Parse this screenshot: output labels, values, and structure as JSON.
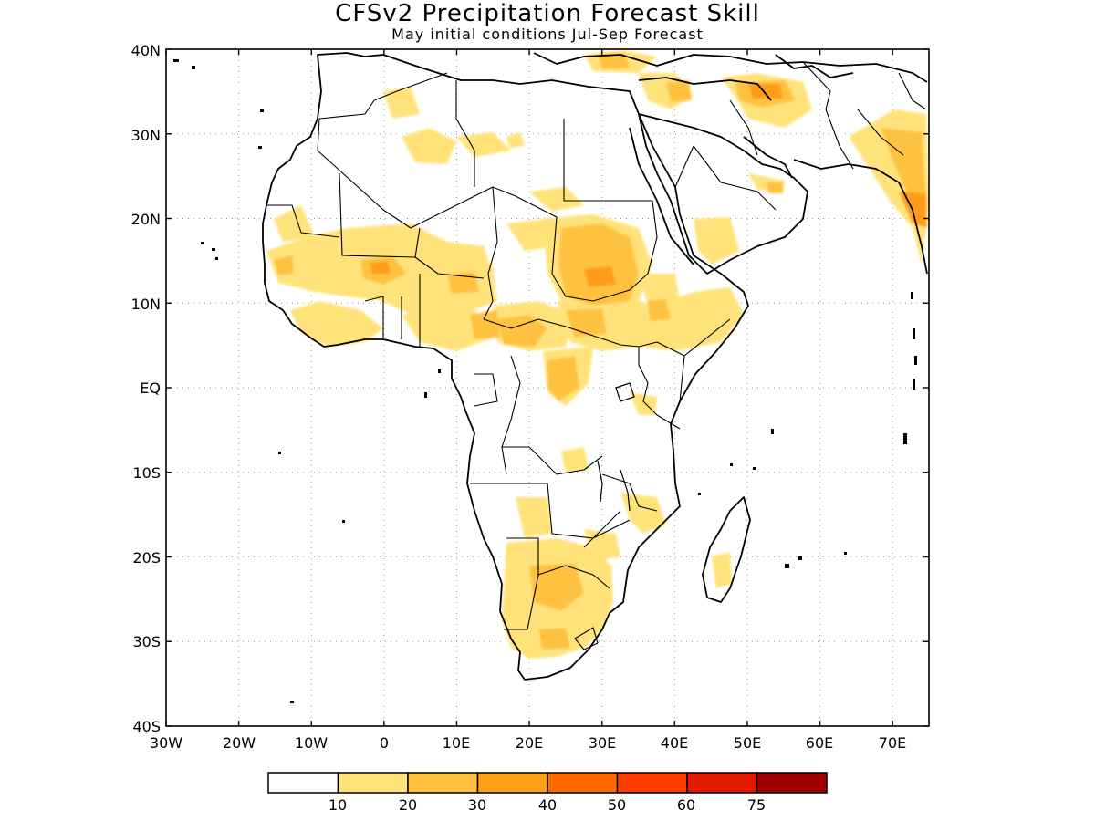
{
  "title": "CFSv2 Precipitation Forecast Skill",
  "subtitle": "May initial conditions  Jul-Sep Forecast",
  "map": {
    "lon_range": [
      -30,
      75
    ],
    "lat_range": [
      -40,
      40
    ],
    "lat_labels": [
      "40N",
      "30N",
      "20N",
      "10N",
      "EQ",
      "10S",
      "20S",
      "30S",
      "40S"
    ],
    "lon_labels": [
      "30W",
      "20W",
      "10W",
      "0",
      "10E",
      "20E",
      "30E",
      "40E",
      "50E",
      "60E",
      "70E"
    ],
    "grid": "dotted"
  },
  "colorbar": {
    "labels": [
      "10",
      "20",
      "30",
      "40",
      "50",
      "60",
      "75"
    ],
    "colors": [
      "#ffffff",
      "#ffe37a",
      "#ffc240",
      "#ff9e18",
      "#ff6a00",
      "#ff3d00",
      "#e01a00",
      "#a00000"
    ]
  }
}
